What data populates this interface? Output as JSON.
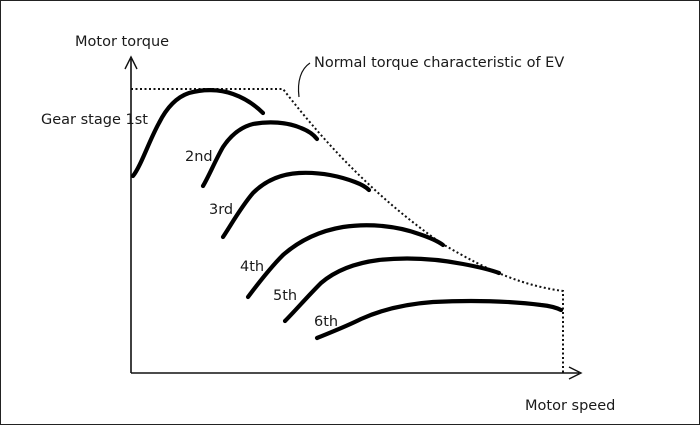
{
  "diagram": {
    "y_axis_label": "Motor torque",
    "x_axis_label": "Motor speed",
    "envelope_label": "Normal torque characteristic of EV",
    "gear_labels": [
      "Gear stage 1st",
      "2nd",
      "3rd",
      "4th",
      "5th",
      "6th"
    ],
    "colors": {
      "line": "#000000",
      "background": "#ffffff",
      "text": "#1a1a1a"
    }
  }
}
